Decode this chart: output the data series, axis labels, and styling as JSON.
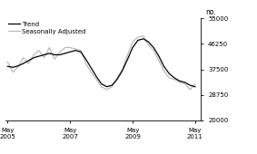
{
  "title": "",
  "ylabel": "no.",
  "xlim_start": 2005.25,
  "xlim_end": 2011.5,
  "ylim": [
    20000,
    55000
  ],
  "yticks": [
    20000,
    28750,
    37500,
    46250,
    55000
  ],
  "xtick_positions": [
    2005.33,
    2007.33,
    2009.33,
    2011.33
  ],
  "xtick_labels": [
    "May\n2005",
    "May\n2007",
    "May\n2009",
    "May\n2011"
  ],
  "trend_color": "#000000",
  "sa_color": "#bbbbbb",
  "trend_lw": 0.9,
  "sa_lw": 0.9,
  "legend_labels": [
    "Trend",
    "Seasonally Adjusted"
  ],
  "background_color": "#ffffff",
  "trend_x": [
    2005.33,
    2005.5,
    2005.67,
    2005.83,
    2006.0,
    2006.17,
    2006.33,
    2006.5,
    2006.67,
    2006.83,
    2007.0,
    2007.17,
    2007.33,
    2007.5,
    2007.67,
    2007.83,
    2008.0,
    2008.17,
    2008.33,
    2008.5,
    2008.67,
    2008.83,
    2009.0,
    2009.17,
    2009.33,
    2009.5,
    2009.67,
    2009.83,
    2010.0,
    2010.17,
    2010.33,
    2010.5,
    2010.67,
    2010.83,
    2011.0,
    2011.17,
    2011.33
  ],
  "trend_y": [
    38500,
    38200,
    38700,
    39500,
    40500,
    41500,
    42000,
    42500,
    43000,
    42500,
    42500,
    43000,
    43500,
    44000,
    43500,
    41000,
    38000,
    35000,
    32500,
    31500,
    32000,
    34000,
    37000,
    41000,
    45000,
    47500,
    48000,
    47000,
    45000,
    42000,
    38500,
    36000,
    34500,
    33500,
    33000,
    32000,
    31500
  ],
  "sa_x": [
    2005.33,
    2005.5,
    2005.67,
    2005.83,
    2006.0,
    2006.17,
    2006.33,
    2006.5,
    2006.67,
    2006.83,
    2007.0,
    2007.17,
    2007.33,
    2007.5,
    2007.67,
    2007.83,
    2008.0,
    2008.17,
    2008.33,
    2008.5,
    2008.67,
    2008.83,
    2009.0,
    2009.17,
    2009.33,
    2009.5,
    2009.67,
    2009.83,
    2010.0,
    2010.17,
    2010.33,
    2010.5,
    2010.67,
    2010.83,
    2011.0,
    2011.17,
    2011.33
  ],
  "sa_y": [
    40000,
    36500,
    38500,
    41500,
    39500,
    42500,
    44000,
    41500,
    45000,
    41000,
    43500,
    45000,
    45000,
    44500,
    44000,
    39500,
    36500,
    34000,
    31500,
    30500,
    31500,
    34500,
    37500,
    42500,
    47000,
    48500,
    49000,
    46000,
    44000,
    40500,
    37000,
    34500,
    34000,
    33000,
    32500,
    30500,
    32500
  ]
}
